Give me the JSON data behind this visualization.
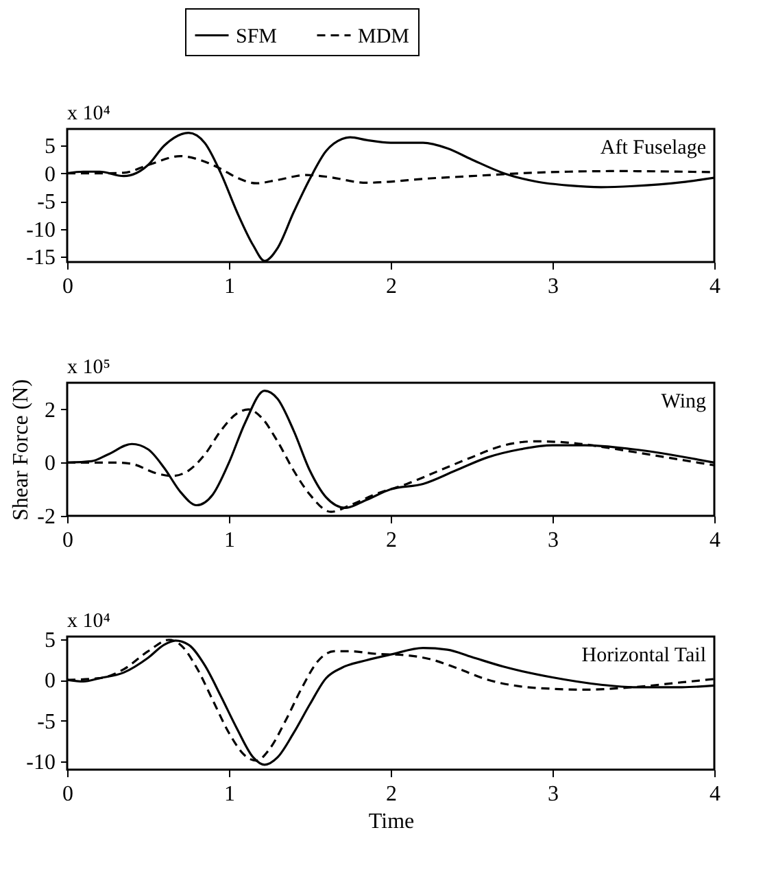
{
  "chart_data": [
    {
      "type": "line",
      "legend": "top",
      "annotations": [
        "x 10⁴",
        "Aft Fuselage"
      ],
      "xlim": [
        0,
        4
      ],
      "xticks": [
        0,
        1,
        2,
        3,
        4
      ],
      "ylim": [
        -16,
        8
      ],
      "yticks": [
        -15,
        -10,
        -5,
        0,
        5
      ],
      "grid": false,
      "series": [
        {
          "name": "SFM",
          "color": "#000000",
          "line_style": "solid",
          "x": [
            0,
            0.1,
            0.2,
            0.35,
            0.5,
            0.6,
            0.75,
            0.85,
            0.95,
            1.05,
            1.15,
            1.22,
            1.3,
            1.4,
            1.5,
            1.6,
            1.7,
            1.75,
            1.85,
            2.0,
            2.2,
            2.35,
            2.5,
            2.7,
            2.9,
            3.1,
            3.3,
            3.5,
            3.8,
            4
          ],
          "values": [
            0,
            0.3,
            0.3,
            -0.5,
            1.5,
            5,
            7.3,
            5.5,
            0,
            -7,
            -13,
            -15.8,
            -13.5,
            -7,
            -1,
            4,
            6.2,
            6.5,
            6,
            5.5,
            5.5,
            4.5,
            2.5,
            0,
            -1.5,
            -2.2,
            -2.5,
            -2.3,
            -1.6,
            -0.8
          ]
        },
        {
          "name": "MDM",
          "color": "#000000",
          "line_style": "dashed",
          "x": [
            0,
            0.2,
            0.35,
            0.5,
            0.7,
            0.8,
            0.95,
            1.05,
            1.17,
            1.3,
            1.48,
            1.6,
            1.85,
            2.0,
            2.2,
            2.5,
            2.8,
            3.1,
            3.4,
            3.8,
            4
          ],
          "values": [
            0,
            0,
            0.1,
            1.5,
            3.1,
            2.6,
            0.8,
            -0.8,
            -1.8,
            -1.2,
            -0.3,
            -0.6,
            -1.7,
            -1.5,
            -1,
            -0.5,
            0,
            0.3,
            0.4,
            0.3,
            0.2
          ]
        }
      ]
    },
    {
      "type": "line",
      "ylabel": "Shear Force (N)",
      "annotations": [
        "x 10⁵",
        "Wing"
      ],
      "xlim": [
        0,
        4
      ],
      "xticks": [
        0,
        1,
        2,
        3,
        4
      ],
      "ylim": [
        -2,
        3
      ],
      "yticks": [
        -2,
        0,
        2
      ],
      "grid": false,
      "series": [
        {
          "color": "#000000",
          "line_style": "solid",
          "x": [
            0,
            0.15,
            0.25,
            0.4,
            0.5,
            0.6,
            0.7,
            0.8,
            0.9,
            1.0,
            1.1,
            1.22,
            1.3,
            1.4,
            1.5,
            1.6,
            1.72,
            1.85,
            2.0,
            2.2,
            2.4,
            2.6,
            2.8,
            3.0,
            3.2,
            3.5,
            4
          ],
          "values": [
            0,
            0.05,
            0.3,
            0.7,
            0.5,
            -0.2,
            -1.1,
            -1.6,
            -1.2,
            0,
            1.5,
            2.7,
            2.4,
            1.2,
            -0.3,
            -1.3,
            -1.7,
            -1.4,
            -1.0,
            -0.8,
            -0.3,
            0.2,
            0.5,
            0.65,
            0.65,
            0.5,
            0.0
          ]
        },
        {
          "color": "#000000",
          "line_style": "dashed",
          "x": [
            0,
            0.3,
            0.4,
            0.55,
            0.65,
            0.75,
            0.85,
            0.95,
            1.05,
            1.12,
            1.2,
            1.3,
            1.4,
            1.5,
            1.63,
            1.75,
            1.9,
            2.1,
            2.3,
            2.5,
            2.7,
            2.9,
            3.1,
            3.4,
            3.7,
            4
          ],
          "values": [
            0,
            0,
            -0.05,
            -0.4,
            -0.5,
            -0.3,
            0.3,
            1.2,
            1.85,
            2.0,
            1.7,
            0.8,
            -0.3,
            -1.2,
            -1.85,
            -1.6,
            -1.2,
            -0.8,
            -0.3,
            0.2,
            0.65,
            0.8,
            0.75,
            0.5,
            0.2,
            -0.1
          ]
        }
      ]
    },
    {
      "type": "line",
      "xlabel": "Time",
      "annotations": [
        "x 10⁴",
        "Horizontal Tail"
      ],
      "xlim": [
        0,
        4
      ],
      "xticks": [
        0,
        1,
        2,
        3,
        4
      ],
      "ylim": [
        -11,
        5.3
      ],
      "yticks": [
        -10,
        -5,
        0,
        5
      ],
      "grid": false,
      "series": [
        {
          "color": "#000000",
          "line_style": "solid",
          "x": [
            0,
            0.1,
            0.2,
            0.35,
            0.5,
            0.6,
            0.67,
            0.75,
            0.85,
            0.95,
            1.05,
            1.15,
            1.22,
            1.3,
            1.4,
            1.5,
            1.6,
            1.7,
            1.85,
            2.0,
            2.2,
            2.35,
            2.5,
            2.7,
            3.0,
            3.3,
            3.5,
            3.8,
            4
          ],
          "values": [
            0,
            -0.2,
            0.2,
            0.9,
            2.7,
            4.3,
            4.8,
            4.3,
            1.8,
            -2,
            -6,
            -9.5,
            -10.4,
            -9.5,
            -6.5,
            -3,
            0.2,
            1.5,
            2.4,
            3.1,
            3.9,
            3.7,
            2.8,
            1.6,
            0.3,
            -0.6,
            -0.9,
            -0.9,
            -0.7
          ]
        },
        {
          "color": "#000000",
          "line_style": "dashed",
          "x": [
            0,
            0.2,
            0.35,
            0.5,
            0.63,
            0.7,
            0.8,
            0.9,
            1.0,
            1.1,
            1.17,
            1.25,
            1.35,
            1.45,
            1.55,
            1.65,
            1.75,
            1.9,
            2.1,
            2.25,
            2.4,
            2.6,
            2.8,
            3.0,
            3.2,
            3.5,
            3.8,
            4
          ],
          "values": [
            0,
            0.2,
            1.3,
            3.5,
            4.9,
            4.3,
            1.5,
            -2.5,
            -6.5,
            -9.3,
            -9.9,
            -8.5,
            -5,
            -1,
            2.3,
            3.5,
            3.5,
            3.2,
            3,
            2.5,
            1.5,
            0,
            -0.8,
            -1.1,
            -1.2,
            -0.9,
            -0.3,
            0.1
          ]
        }
      ]
    }
  ]
}
